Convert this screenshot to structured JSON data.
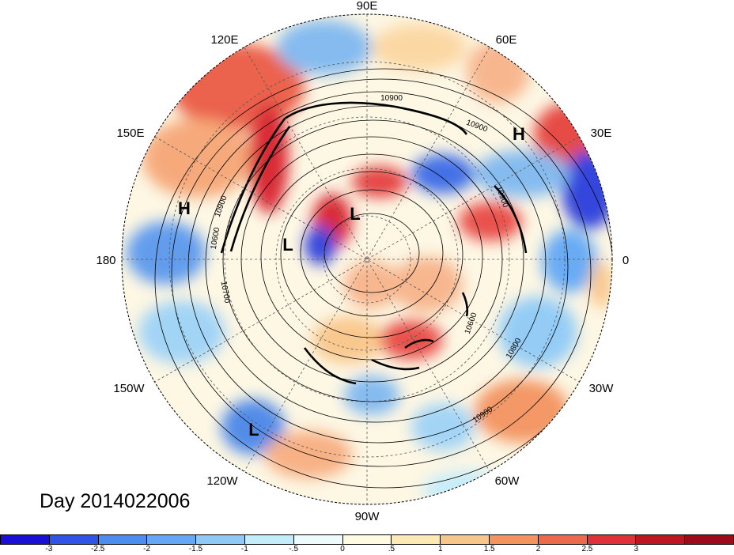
{
  "date_label": "Day 2014022006",
  "longitude_labels": [
    {
      "text": "90E",
      "name": "lon-label-90e"
    },
    {
      "text": "60E",
      "name": "lon-label-60e"
    },
    {
      "text": "120E",
      "name": "lon-label-120e"
    },
    {
      "text": "30E",
      "name": "lon-label-30e"
    },
    {
      "text": "150E",
      "name": "lon-label-150e"
    },
    {
      "text": "180",
      "name": "lon-label-180"
    },
    {
      "text": "0",
      "name": "lon-label-0"
    },
    {
      "text": "150W",
      "name": "lon-label-150w"
    },
    {
      "text": "30W",
      "name": "lon-label-30w"
    },
    {
      "text": "120W",
      "name": "lon-label-120w"
    },
    {
      "text": "60W",
      "name": "lon-label-60w"
    },
    {
      "text": "90W",
      "name": "lon-label-90w"
    }
  ],
  "pressure_centers": [
    {
      "text": "H",
      "name": "high-center-north-pacific"
    },
    {
      "text": "H",
      "name": "high-center-europe"
    },
    {
      "text": "L",
      "name": "low-center-arctic-west"
    },
    {
      "text": "L",
      "name": "low-center-arctic-east"
    },
    {
      "text": "L",
      "name": "low-center-east-pacific"
    }
  ],
  "contour_labels": [
    "10900",
    "10900",
    "10900",
    "10900",
    "10700",
    "10600",
    "10800",
    "10900",
    "10600"
  ],
  "colorbar": {
    "colors": [
      "#1a0fd6",
      "#2f55e6",
      "#4a8ff0",
      "#62a8f5",
      "#8fcaf7",
      "#c4ecfa",
      "#eefbfd",
      "#fffbe0",
      "#fde9b4",
      "#f9c68a",
      "#f3935e",
      "#ec6a4b",
      "#e0303a",
      "#be1525",
      "#9d0a1c"
    ],
    "tick_labels": [
      "-3",
      "-2.5",
      "-2",
      "-1.5",
      "-1",
      "-.5",
      "0",
      ".5",
      "1",
      "1.5",
      "2",
      "2.5",
      "3"
    ]
  }
}
